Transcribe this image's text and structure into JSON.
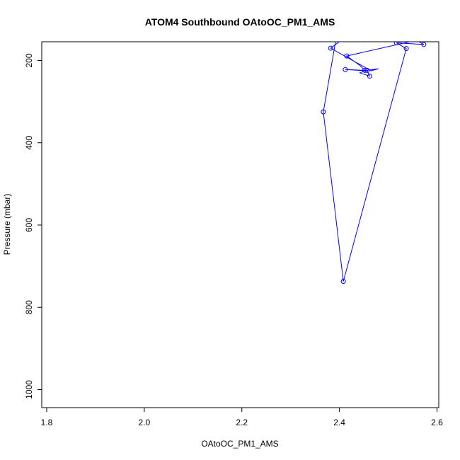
{
  "chart_data": {
    "type": "line",
    "title": "ATOM4 Southbound OAtoOC_PM1_AMS",
    "xlabel": "OAtoOC_PM1_AMS",
    "ylabel": "Pressure (mbar)",
    "xlim": [
      1.8,
      2.6
    ],
    "ylim": [
      1040,
      155
    ],
    "y_reversed": true,
    "x_ticks": [
      "1.8",
      "2.0",
      "2.2",
      "2.4",
      "2.6"
    ],
    "y_ticks": [
      "200",
      "400",
      "600",
      "800",
      "1000"
    ],
    "grid": false,
    "legend": "none",
    "color": "#0000ff",
    "series": [
      {
        "name": "",
        "x": [
          2.4,
          2.367,
          2.408,
          2.537,
          2.517,
          2.573,
          2.557,
          2.415,
          2.442,
          2.452,
          2.412,
          2.442,
          2.457,
          2.462,
          2.442,
          2.455,
          2.48,
          2.465,
          2.382,
          2.41
        ],
        "y": [
          100,
          325,
          737,
          171,
          157,
          161,
          151,
          189,
          212,
          224,
          222,
          224,
          224,
          238,
          230,
          224,
          220,
          225,
          170,
          145
        ],
        "markers": [
          false,
          true,
          true,
          true,
          true,
          true,
          false,
          true,
          false,
          true,
          true,
          false,
          true,
          true,
          false,
          false,
          false,
          false,
          true,
          false
        ]
      }
    ]
  }
}
